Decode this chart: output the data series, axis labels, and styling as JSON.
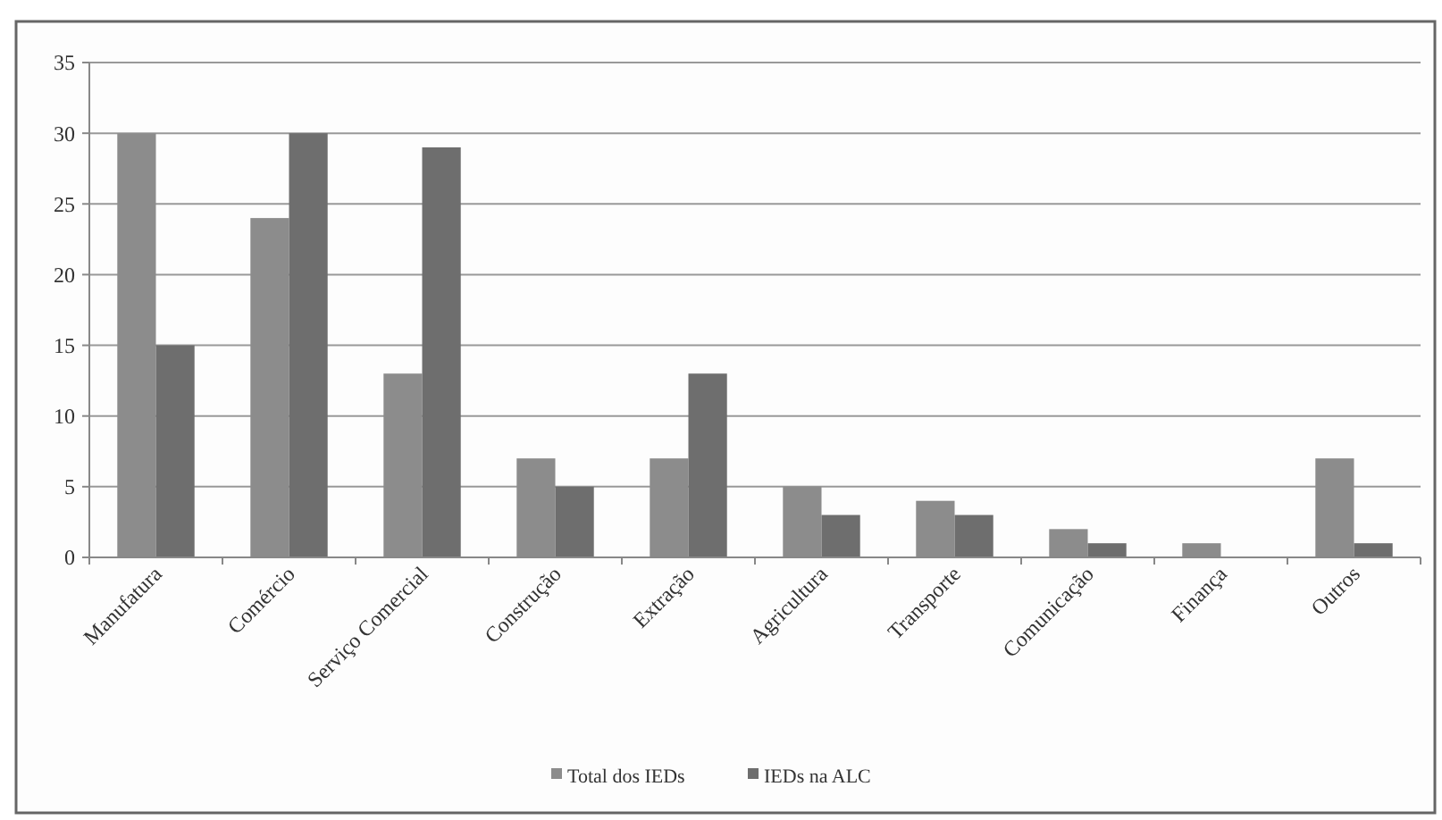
{
  "chart_data": {
    "type": "bar",
    "categories": [
      "Manufatura",
      "Comércio",
      "Serviço Comercial",
      "Construção",
      "Extração",
      "Agricultura",
      "Transporte",
      "Comunicação",
      "Finança",
      "Outros"
    ],
    "series": [
      {
        "name": "Total dos IEDs",
        "color": "#8c8c8c",
        "values": [
          30,
          24,
          13,
          7,
          7,
          5,
          4,
          2,
          1,
          7
        ]
      },
      {
        "name": "IEDs na ALC",
        "color": "#6e6e6e",
        "values": [
          15,
          30,
          29,
          5,
          13,
          3,
          3,
          1,
          0,
          1
        ]
      }
    ],
    "ylim": [
      0,
      35
    ],
    "yticks": [
      0,
      5,
      10,
      15,
      20,
      25,
      30,
      35
    ],
    "grid": "y",
    "legend": "bottom"
  }
}
